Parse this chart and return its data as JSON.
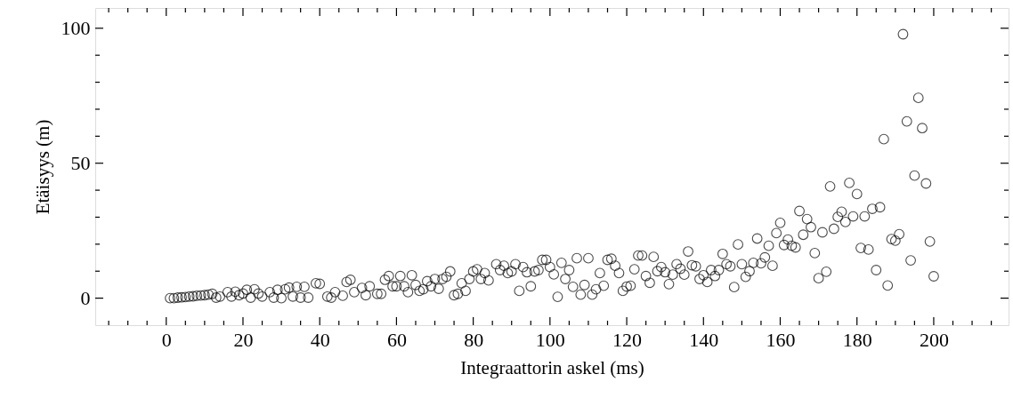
{
  "chart_data": {
    "type": "scatter",
    "xlabel": "Integraattorin askel (ms)",
    "ylabel": "Etäisyys (m)",
    "marker": "circle",
    "grid": false,
    "xlim": [
      -18.5,
      219.5
    ],
    "ylim": [
      -10,
      107.5
    ],
    "xticks": [
      {
        "value": -15,
        "label": null
      },
      {
        "value": -10,
        "label": null
      },
      {
        "value": -5,
        "label": null
      },
      0,
      {
        "value": 5,
        "label": null
      },
      {
        "value": 10,
        "label": null
      },
      {
        "value": 15,
        "label": null
      },
      20,
      {
        "value": 25,
        "label": null
      },
      {
        "value": 30,
        "label": null
      },
      {
        "value": 35,
        "label": null
      },
      40,
      {
        "value": 45,
        "label": null
      },
      {
        "value": 50,
        "label": null
      },
      {
        "value": 55,
        "label": null
      },
      60,
      {
        "value": 65,
        "label": null
      },
      {
        "value": 70,
        "label": null
      },
      {
        "value": 75,
        "label": null
      },
      80,
      {
        "value": 85,
        "label": null
      },
      {
        "value": 90,
        "label": null
      },
      {
        "value": 95,
        "label": null
      },
      100,
      {
        "value": 105,
        "label": null
      },
      {
        "value": 110,
        "label": null
      },
      {
        "value": 115,
        "label": null
      },
      120,
      {
        "value": 125,
        "label": null
      },
      {
        "value": 130,
        "label": null
      },
      {
        "value": 135,
        "label": null
      },
      140,
      {
        "value": 145,
        "label": null
      },
      {
        "value": 150,
        "label": null
      },
      {
        "value": 155,
        "label": null
      },
      160,
      {
        "value": 165,
        "label": null
      },
      {
        "value": 170,
        "label": null
      },
      {
        "value": 175,
        "label": null
      },
      180,
      {
        "value": 185,
        "label": null
      },
      {
        "value": 190,
        "label": null
      },
      {
        "value": 195,
        "label": null
      },
      200,
      {
        "value": 205,
        "label": null
      },
      {
        "value": 210,
        "label": null
      },
      {
        "value": 215,
        "label": null
      }
    ],
    "yticks": [
      0,
      {
        "value": 10,
        "label": null
      },
      {
        "value": 20,
        "label": null
      },
      {
        "value": 30,
        "label": null
      },
      {
        "value": 40,
        "label": null
      },
      50,
      {
        "value": 60,
        "label": null
      },
      {
        "value": 70,
        "label": null
      },
      {
        "value": 80,
        "label": null
      },
      {
        "value": 90,
        "label": null
      },
      100
    ],
    "series": [
      {
        "color": "#000000",
        "x": [
          1,
          2,
          3,
          4,
          5,
          6,
          7,
          8,
          9,
          10,
          11,
          12,
          13,
          14,
          16,
          17,
          18,
          19,
          20,
          21,
          22,
          23,
          24,
          25,
          27,
          28,
          29,
          30,
          31,
          32,
          33,
          34,
          35,
          36,
          37,
          39,
          40,
          42,
          43,
          44,
          46,
          47,
          48,
          49,
          51,
          52,
          53,
          55,
          56,
          57,
          58,
          59,
          60,
          61,
          62,
          63,
          64,
          65,
          66,
          67,
          68,
          69,
          70,
          71,
          72,
          73,
          74,
          75,
          76,
          77,
          78,
          79,
          80,
          81,
          82,
          83,
          84,
          86,
          87,
          88,
          89,
          90,
          91,
          92,
          93,
          94,
          95,
          96,
          97,
          98,
          99,
          100,
          101,
          102,
          103,
          104,
          105,
          106,
          107,
          108,
          109,
          110,
          111,
          112,
          113,
          114,
          115,
          116,
          117,
          118,
          119,
          120,
          121,
          122,
          123,
          124,
          125,
          126,
          127,
          128,
          129,
          130,
          131,
          132,
          133,
          134,
          135,
          136,
          137,
          138,
          139,
          140,
          141,
          142,
          143,
          144,
          145,
          146,
          147,
          148,
          149,
          150,
          151,
          152,
          153,
          154,
          155,
          156,
          157,
          158,
          159,
          160,
          161,
          162,
          163,
          164,
          165,
          166,
          167,
          168,
          169,
          170,
          171,
          172,
          173,
          174,
          175,
          176,
          177,
          178,
          179,
          180,
          181,
          182,
          183,
          184,
          185,
          186,
          187,
          188,
          189,
          190,
          191,
          192,
          193,
          194,
          195,
          196,
          197,
          198,
          199,
          200
        ],
        "values": [
          0,
          0,
          0.2,
          0.3,
          0.4,
          0.6,
          0.7,
          0.9,
          1.0,
          1.1,
          1.3,
          1.6,
          0.2,
          0.6,
          2.2,
          0.6,
          2.4,
          1.1,
          1.7,
          3.1,
          0.2,
          3.3,
          1.7,
          0.6,
          2.2,
          0.2,
          3.1,
          0,
          3.3,
          3.9,
          0.6,
          4.2,
          0.2,
          4.2,
          0.2,
          5.5,
          5.3,
          0.6,
          0.2,
          2.2,
          0.9,
          6.0,
          6.8,
          2.2,
          3.8,
          1.1,
          4.4,
          1.6,
          1.6,
          6.8,
          8.2,
          4.4,
          4.4,
          8.2,
          4.4,
          2.2,
          8.5,
          4.9,
          2.7,
          3.3,
          6.3,
          4.4,
          7.1,
          3.5,
          7.1,
          7.9,
          9.9,
          1.1,
          1.6,
          5.5,
          2.7,
          7.1,
          9.9,
          10.7,
          7.1,
          9.3,
          6.6,
          12.6,
          10.4,
          12.0,
          9.3,
          9.9,
          12.6,
          2.7,
          11.5,
          9.6,
          4.4,
          9.9,
          10.4,
          14.2,
          14.2,
          11.5,
          8.8,
          0.5,
          13.1,
          7.1,
          10.4,
          4.2,
          14.8,
          1.3,
          4.9,
          14.8,
          1.3,
          3.3,
          9.3,
          4.6,
          14.2,
          14.6,
          12.0,
          9.3,
          2.7,
          4.3,
          4.6,
          10.7,
          15.8,
          15.8,
          8.2,
          5.7,
          15.3,
          10,
          11.5,
          9.6,
          5.2,
          8.7,
          12.6,
          10.9,
          8.7,
          17.3,
          12.2,
          11.8,
          7.1,
          8.5,
          6,
          10.4,
          8.2,
          10.4,
          16.4,
          12.6,
          11.8,
          4.1,
          19.9,
          12.6,
          7.9,
          10,
          13.1,
          22.1,
          12.9,
          15.1,
          19.4,
          12.0,
          24.1,
          27.9,
          19.7,
          21.7,
          19.4,
          18.8,
          32.3,
          23.5,
          29.3,
          26.3,
          16.7,
          7.4,
          24.4,
          9.8,
          41.4,
          25.7,
          30.1,
          32,
          28.2,
          42.7,
          30.3,
          38.6,
          18.6,
          30.3,
          18.0,
          33.1,
          10.4,
          33.7,
          58.9,
          4.7,
          21.9,
          21.3,
          23.7,
          97.8,
          65.5,
          14.0,
          45.4,
          74.2,
          63,
          42.5,
          21,
          8.1
        ]
      }
    ]
  }
}
